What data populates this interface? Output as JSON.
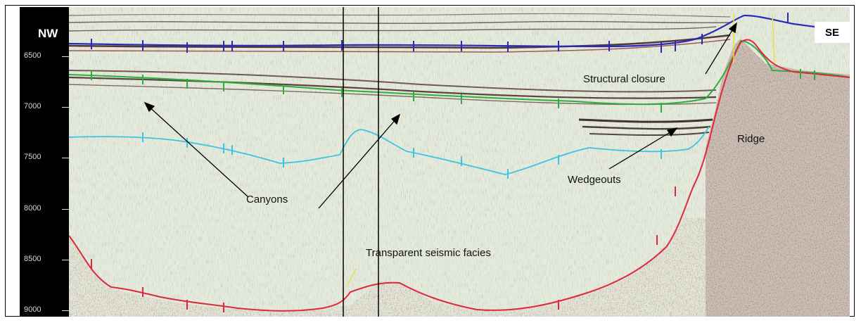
{
  "section": {
    "left_label": "NW",
    "right_label": "SE",
    "depth_ticks": [
      "6500",
      "7000",
      "7500",
      "8000",
      "8500",
      "9000"
    ]
  },
  "annotations": {
    "structural_closure": "Structural closure",
    "ridge": "Ridge",
    "canyons": "Canyons",
    "wedgeouts": "Wedgeouts",
    "transparent_facies": "Transparent seismic facies"
  },
  "colors": {
    "horizon_top": "#2a2ab8",
    "horizon_second": "#2eae3e",
    "horizon_third": "#3cc4e0",
    "horizon_basement": "#e0283c",
    "background": "#e4ebdc",
    "reflector": "#5a3a34"
  }
}
